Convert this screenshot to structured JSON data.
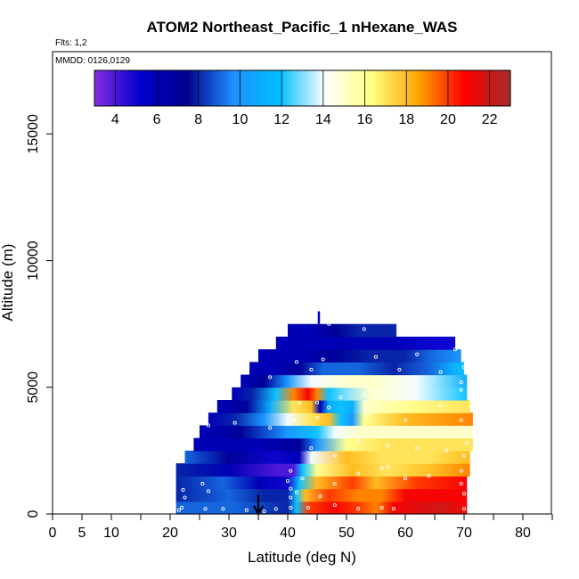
{
  "chart_data": {
    "type": "heatmap",
    "title": "ATOM2 Northeast_Pacific_1 nHexane_WAS",
    "flights_label": "Flts: 1,2",
    "dates_label": "MMDD: 0126,0129",
    "xlabel": "Latitude (deg N)",
    "ylabel": "Altitude (m)",
    "xlim": [
      0,
      85
    ],
    "ylim": [
      0,
      17500
    ],
    "x_ticks": [
      0,
      5,
      10,
      20,
      30,
      40,
      50,
      60,
      70,
      80
    ],
    "x_minor_ticks": [
      15,
      25,
      35,
      45,
      55,
      65,
      75,
      85
    ],
    "y_ticks": [
      0,
      5000,
      10000,
      15000
    ],
    "colorbar": {
      "range": [
        3,
        23
      ],
      "ticks": [
        4,
        6,
        8,
        10,
        12,
        14,
        16,
        18,
        20,
        22
      ],
      "colors": [
        "#8a2be2",
        "#0000cd",
        "#00008b",
        "#1e90ff",
        "#00bfff",
        "#ffffff",
        "#ffff80",
        "#ffa500",
        "#ff0000",
        "#a52a2a"
      ]
    },
    "arrow_latitude": 35,
    "bands": [
      {
        "alt": [
          0,
          500
        ],
        "lat": [
          21,
          70.5
        ],
        "stops": [
          [
            21,
            9
          ],
          [
            31,
            9
          ],
          [
            40,
            8
          ],
          [
            41.5,
            12
          ],
          [
            43.5,
            20
          ],
          [
            48,
            21
          ],
          [
            52,
            20
          ],
          [
            55,
            19
          ],
          [
            58,
            21
          ],
          [
            66,
            22
          ],
          [
            70.5,
            21
          ]
        ]
      },
      {
        "alt": [
          500,
          1000
        ],
        "lat": [
          21,
          70.5
        ],
        "stops": [
          [
            21,
            8
          ],
          [
            30,
            9
          ],
          [
            36,
            8
          ],
          [
            40,
            8
          ],
          [
            41.5,
            12
          ],
          [
            43,
            18
          ],
          [
            47,
            20
          ],
          [
            52,
            19
          ],
          [
            56,
            19
          ],
          [
            60,
            21
          ],
          [
            70.5,
            21
          ]
        ]
      },
      {
        "alt": [
          1000,
          1500
        ],
        "lat": [
          21,
          70.5
        ],
        "stops": [
          [
            21,
            8
          ],
          [
            29,
            9
          ],
          [
            35,
            6
          ],
          [
            40,
            5
          ],
          [
            42,
            12
          ],
          [
            45,
            18
          ],
          [
            51,
            20
          ],
          [
            55,
            18
          ],
          [
            62,
            20
          ],
          [
            70.5,
            21
          ]
        ]
      },
      {
        "alt": [
          1500,
          2000
        ],
        "lat": [
          21,
          71
        ],
        "stops": [
          [
            21,
            8
          ],
          [
            30,
            6
          ],
          [
            38,
            4
          ],
          [
            41,
            4
          ],
          [
            42.5,
            12
          ],
          [
            45,
            16
          ],
          [
            51,
            18
          ],
          [
            57,
            17
          ],
          [
            65,
            18
          ],
          [
            71,
            19
          ]
        ]
      },
      {
        "alt": [
          2000,
          2500
        ],
        "lat": [
          22.5,
          71
        ],
        "stops": [
          [
            22.5,
            9
          ],
          [
            30,
            7
          ],
          [
            38,
            5
          ],
          [
            42,
            6
          ],
          [
            44,
            14
          ],
          [
            50,
            18
          ],
          [
            56,
            17
          ],
          [
            64,
            17
          ],
          [
            71,
            18
          ]
        ]
      },
      {
        "alt": [
          2500,
          3000
        ],
        "lat": [
          24,
          71.5
        ],
        "stops": [
          [
            24,
            6
          ],
          [
            35,
            6
          ],
          [
            42,
            7
          ],
          [
            45,
            10
          ],
          [
            50,
            16
          ],
          [
            56,
            17
          ],
          [
            64,
            17
          ],
          [
            71.5,
            17
          ]
        ]
      },
      {
        "alt": [
          3000,
          3500
        ],
        "lat": [
          25,
          71.5
        ],
        "stops": [
          [
            25,
            6
          ],
          [
            32,
            7
          ],
          [
            40,
            10
          ],
          [
            45,
            12
          ],
          [
            48,
            14
          ],
          [
            52,
            15
          ],
          [
            56,
            15
          ],
          [
            64,
            15
          ],
          [
            71.5,
            15
          ]
        ]
      },
      {
        "alt": [
          3500,
          4000
        ],
        "lat": [
          26.5,
          71.5
        ],
        "stops": [
          [
            26.5,
            6
          ],
          [
            31,
            8
          ],
          [
            36,
            10
          ],
          [
            40,
            14
          ],
          [
            44,
            17
          ],
          [
            47,
            18
          ],
          [
            49,
            12
          ],
          [
            51,
            10
          ],
          [
            53,
            16
          ],
          [
            60,
            18
          ],
          [
            71.5,
            19
          ]
        ]
      },
      {
        "alt": [
          4000,
          4500
        ],
        "lat": [
          28,
          71
        ],
        "stops": [
          [
            28,
            6
          ],
          [
            33,
            7
          ],
          [
            37,
            11
          ],
          [
            41,
            17
          ],
          [
            44,
            18
          ],
          [
            45.5,
            6
          ],
          [
            47,
            11
          ],
          [
            49,
            12
          ],
          [
            51,
            11
          ],
          [
            53,
            15
          ],
          [
            60,
            16
          ],
          [
            71,
            17
          ]
        ]
      },
      {
        "alt": [
          4500,
          5000
        ],
        "lat": [
          30.5,
          70.5
        ],
        "stops": [
          [
            30.5,
            6
          ],
          [
            34,
            8
          ],
          [
            38,
            12
          ],
          [
            41,
            19
          ],
          [
            43.5,
            21
          ],
          [
            45,
            19
          ],
          [
            47,
            12
          ],
          [
            50,
            13
          ],
          [
            54,
            15
          ],
          [
            62,
            14
          ],
          [
            70.5,
            12
          ]
        ]
      },
      {
        "alt": [
          5000,
          5500
        ],
        "lat": [
          32,
          70.5
        ],
        "stops": [
          [
            32,
            6
          ],
          [
            36,
            7
          ],
          [
            40,
            10
          ],
          [
            44,
            14
          ],
          [
            50,
            15
          ],
          [
            55,
            15
          ],
          [
            62,
            14
          ],
          [
            66,
            13
          ],
          [
            70.5,
            11
          ]
        ]
      },
      {
        "alt": [
          5500,
          6000
        ],
        "lat": [
          33.5,
          70
        ],
        "stops": [
          [
            33.5,
            6
          ],
          [
            38,
            6
          ],
          [
            42,
            7
          ],
          [
            46,
            9
          ],
          [
            52,
            9
          ],
          [
            58,
            8
          ],
          [
            64,
            9
          ],
          [
            68,
            11
          ],
          [
            70,
            12
          ]
        ]
      },
      {
        "alt": [
          6000,
          6500
        ],
        "lat": [
          35,
          69.5
        ],
        "stops": [
          [
            35,
            6
          ],
          [
            42,
            6
          ],
          [
            48,
            7
          ],
          [
            54,
            8
          ],
          [
            60,
            8
          ],
          [
            64,
            9
          ],
          [
            69.5,
            10
          ]
        ]
      },
      {
        "alt": [
          6500,
          7000
        ],
        "lat": [
          38,
          68.5
        ],
        "stops": [
          [
            38,
            6
          ],
          [
            44,
            6
          ],
          [
            50,
            6
          ],
          [
            58,
            6
          ],
          [
            64,
            5
          ],
          [
            68.5,
            5
          ]
        ]
      },
      {
        "alt": [
          7000,
          7500
        ],
        "lat": [
          40,
          58.5
        ],
        "stops": [
          [
            40,
            6
          ],
          [
            44,
            6
          ],
          [
            48,
            7
          ],
          [
            52,
            8
          ],
          [
            58.5,
            8
          ]
        ]
      }
    ],
    "samples": [
      [
        21.5,
        150
      ],
      [
        22,
        250
      ],
      [
        22.5,
        650
      ],
      [
        22.2,
        950
      ],
      [
        26,
        200
      ],
      [
        29,
        200
      ],
      [
        25.5,
        1200
      ],
      [
        26.5,
        900
      ],
      [
        33,
        150
      ],
      [
        36,
        100
      ],
      [
        38,
        200
      ],
      [
        40.5,
        250
      ],
      [
        40.5,
        650
      ],
      [
        40.5,
        1000
      ],
      [
        40,
        1300
      ],
      [
        40.5,
        1700
      ],
      [
        41.5,
        850
      ],
      [
        43.5,
        250
      ],
      [
        45.5,
        700
      ],
      [
        48,
        350
      ],
      [
        52,
        200
      ],
      [
        56,
        250
      ],
      [
        58,
        200
      ],
      [
        42.5,
        1400
      ],
      [
        48,
        1200
      ],
      [
        52,
        1600
      ],
      [
        56,
        1800
      ],
      [
        57,
        1850
      ],
      [
        60,
        1400
      ],
      [
        64,
        1500
      ],
      [
        69.5,
        1200
      ],
      [
        70,
        800
      ],
      [
        70,
        200
      ],
      [
        69.5,
        1700
      ],
      [
        70,
        2300
      ],
      [
        70.5,
        2800
      ],
      [
        44,
        2600
      ],
      [
        48,
        2300
      ],
      [
        52,
        2900
      ],
      [
        57,
        2700
      ],
      [
        62,
        2600
      ],
      [
        67,
        2500
      ],
      [
        26.5,
        3500
      ],
      [
        31,
        3600
      ],
      [
        37,
        3400
      ],
      [
        41,
        3700
      ],
      [
        45,
        3800
      ],
      [
        47,
        4200
      ],
      [
        53.5,
        3900
      ],
      [
        60,
        3700
      ],
      [
        69.5,
        3700
      ],
      [
        42,
        4400
      ],
      [
        45,
        4400
      ],
      [
        49,
        4600
      ],
      [
        53,
        4700
      ],
      [
        58,
        4500
      ],
      [
        66,
        4300
      ],
      [
        69.5,
        4900
      ],
      [
        37,
        5400
      ],
      [
        44,
        5700
      ],
      [
        51,
        5300
      ],
      [
        59,
        5700
      ],
      [
        66,
        5600
      ],
      [
        69.5,
        5200
      ],
      [
        70,
        5800
      ],
      [
        41.5,
        6000
      ],
      [
        46,
        6100
      ],
      [
        55,
        6200
      ],
      [
        62,
        6300
      ],
      [
        68.5,
        6500
      ],
      [
        47,
        7500
      ],
      [
        53,
        7300
      ]
    ]
  }
}
